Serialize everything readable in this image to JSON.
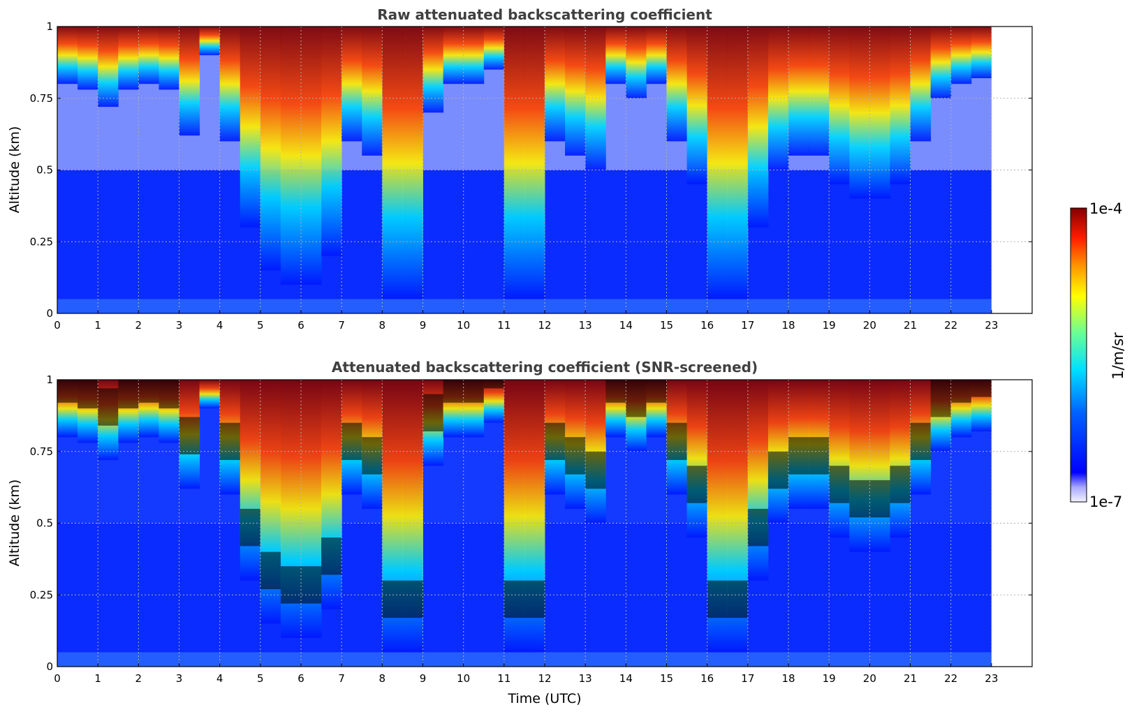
{
  "chart_data": [
    {
      "type": "heatmap",
      "title": "Raw attenuated backscattering coefficient",
      "ylabel": "Altitude (km)",
      "xlabel": "",
      "xlim": [
        0,
        24
      ],
      "ylim": [
        0,
        1
      ],
      "x_ticks": [
        "0",
        "1",
        "2",
        "3",
        "4",
        "5",
        "6",
        "7",
        "8",
        "9",
        "10",
        "11",
        "12",
        "13",
        "14",
        "15",
        "16",
        "17",
        "18",
        "19",
        "20",
        "21",
        "22",
        "23"
      ],
      "y_ticks": [
        "0",
        "0.25",
        "0.5",
        "0.75",
        "1"
      ],
      "data_end_time": 23,
      "grid": true,
      "screened": false,
      "colormap": "jet",
      "cloud_profile": {
        "x": [
          0,
          0.5,
          1,
          1.5,
          2,
          2.5,
          3,
          3.5,
          4,
          4.5,
          5,
          5.5,
          6,
          6.5,
          7,
          7.5,
          8,
          8.5,
          9,
          9.5,
          10,
          10.5,
          11,
          11.5,
          12,
          12.5,
          13,
          13.5,
          14,
          14.5,
          15,
          15.5,
          16,
          16.5,
          17,
          17.5,
          18,
          18.5,
          19,
          19.5,
          20,
          20.5,
          21,
          21.5,
          22,
          22.5,
          23
        ],
        "base_km": [
          0.8,
          0.78,
          0.72,
          0.78,
          0.8,
          0.78,
          0.62,
          0.9,
          0.6,
          0.3,
          0.15,
          0.1,
          0.1,
          0.2,
          0.6,
          0.55,
          0.05,
          0.05,
          0.7,
          0.8,
          0.8,
          0.85,
          0.05,
          0.05,
          0.6,
          0.55,
          0.5,
          0.8,
          0.75,
          0.8,
          0.6,
          0.45,
          0.05,
          0.05,
          0.3,
          0.5,
          0.55,
          0.55,
          0.45,
          0.4,
          0.4,
          0.45,
          0.6,
          0.75,
          0.8,
          0.82,
          0.82
        ]
      }
    },
    {
      "type": "heatmap",
      "title": "Attenuated backscattering coefficient (SNR-screened)",
      "ylabel": "Altitude (km)",
      "xlabel": "Time (UTC)",
      "xlim": [
        0,
        24
      ],
      "ylim": [
        0,
        1
      ],
      "x_ticks": [
        "0",
        "1",
        "2",
        "3",
        "4",
        "5",
        "6",
        "7",
        "8",
        "9",
        "10",
        "11",
        "12",
        "13",
        "14",
        "15",
        "16",
        "17",
        "18",
        "19",
        "20",
        "21",
        "22",
        "23"
      ],
      "y_ticks": [
        "0",
        "0.25",
        "0.5",
        "0.75",
        "1"
      ],
      "data_end_time": 23,
      "grid": true,
      "screened": true,
      "colormap": "jet"
    }
  ],
  "colorbar": {
    "min_label": "1e-7",
    "max_label": "1e-4",
    "label": "1/m/sr",
    "scale": "log"
  }
}
